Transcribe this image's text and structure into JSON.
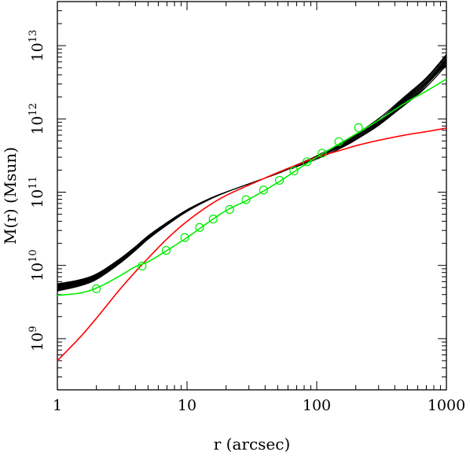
{
  "chart_data": {
    "type": "line",
    "title": "",
    "xlabel": "r (arcsec)",
    "ylabel": "M(r) (Msun)",
    "x_scale": "log",
    "y_scale": "log",
    "xlim": [
      1,
      1000
    ],
    "ylim": [
      200000000.0,
      40000000000000.0
    ],
    "grid": false,
    "x_ticks": [
      {
        "value": 1,
        "label": "1"
      },
      {
        "value": 10,
        "label": "10"
      },
      {
        "value": 100,
        "label": "100"
      },
      {
        "value": 1000,
        "label": "1000"
      }
    ],
    "y_ticks": [
      {
        "value": 1000000000.0,
        "base": "10",
        "exp": "9"
      },
      {
        "value": 10000000000.0,
        "base": "10",
        "exp": "10"
      },
      {
        "value": 100000000000.0,
        "base": "10",
        "exp": "11"
      },
      {
        "value": 1000000000000.0,
        "base": "10",
        "exp": "12"
      },
      {
        "value": 10000000000000.0,
        "base": "10",
        "exp": "13"
      }
    ],
    "colors": {
      "ensemble": "#000000",
      "red": "#ff0000",
      "green": "#00ee00"
    },
    "ensemble": {
      "count": 20,
      "x": [
        1,
        1.5,
        2,
        3,
        4,
        5,
        7,
        10,
        15,
        20,
        30,
        50,
        70,
        100,
        150,
        200,
        300,
        500,
        700,
        1000
      ],
      "values": [
        5000000000.0,
        5800000000.0,
        7000000000.0,
        11300000000.0,
        17000000000.0,
        24000000000.0,
        37000000000.0,
        56000000000.0,
        81000000000.0,
        100000000000.0,
        130000000000.0,
        180000000000.0,
        230000000000.0,
        300000000000.0,
        420000000000.0,
        560000000000.0,
        900000000000.0,
        1900000000000.0,
        3200000000000.0,
        6500000000000.0
      ],
      "inner_spread": 0.1,
      "outer_spread": 0.14
    },
    "series": [
      {
        "color": "#ff0000",
        "x": [
          1,
          1.5,
          2,
          3,
          4,
          5,
          7,
          10,
          15,
          20,
          30,
          50,
          70,
          100,
          150,
          200,
          300,
          500,
          700,
          1000
        ],
        "values": [
          500000000.0,
          1050000000.0,
          1900000000.0,
          4600000000.0,
          8200000000.0,
          12500000000.0,
          23000000000.0,
          40000000000.0,
          67000000000.0,
          90000000000.0,
          125000000000.0,
          185000000000.0,
          235000000000.0,
          300000000000.0,
          370000000000.0,
          430000000000.0,
          510000000000.0,
          610000000000.0,
          670000000000.0,
          750000000000.0
        ]
      },
      {
        "color": "#00ee00",
        "x": [
          1,
          1.5,
          2,
          3,
          4,
          5,
          7,
          10,
          15,
          20,
          30,
          50,
          70,
          100,
          150,
          200,
          300,
          500,
          700,
          1000
        ],
        "values": [
          3900000000.0,
          4200000000.0,
          4900000000.0,
          7100000000.0,
          9600000000.0,
          11200000000.0,
          16000000000.0,
          24000000000.0,
          40000000000.0,
          56000000000.0,
          80000000000.0,
          135000000000.0,
          200000000000.0,
          300000000000.0,
          460000000000.0,
          620000000000.0,
          960000000000.0,
          1720000000000.0,
          2400000000000.0,
          3500000000000.0
        ]
      }
    ],
    "markers": {
      "color": "#00ee00",
      "style": "open-circle",
      "x": [
        2.0,
        4.5,
        6.9,
        9.6,
        12.5,
        15.9,
        21.3,
        28.5,
        38.9,
        51.6,
        66.7,
        84.0,
        110,
        148,
        210
      ],
      "y": [
        4800000000.0,
        9800000000.0,
        16000000000.0,
        24000000000.0,
        33000000000.0,
        43000000000.0,
        58000000000.0,
        79000000000.0,
        107000000000.0,
        145000000000.0,
        195000000000.0,
        260000000000.0,
        340000000000.0,
        490000000000.0,
        760000000000.0
      ]
    }
  }
}
